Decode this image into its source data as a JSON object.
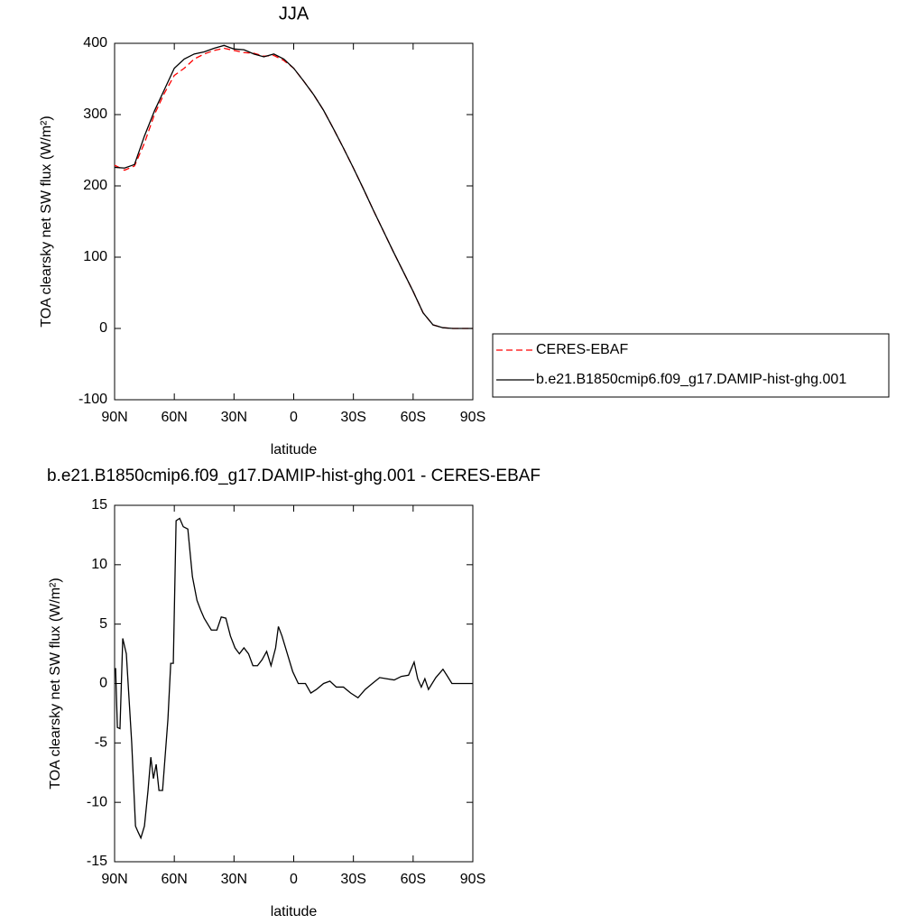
{
  "chart_data": [
    {
      "type": "line",
      "title": "JJA",
      "x_label": "latitude",
      "y_label": "TOA clearsky net SW flux (W/m²)",
      "x": [
        90,
        85,
        80,
        75,
        70,
        65,
        60,
        55,
        50,
        45,
        40,
        35,
        30,
        25,
        20,
        15,
        10,
        5,
        0,
        -5,
        -10,
        -15,
        -20,
        -25,
        -30,
        -35,
        -40,
        -45,
        -50,
        -55,
        -60,
        -65,
        -70,
        -75,
        -80,
        -85,
        -90
      ],
      "series": [
        {
          "name": "CERES-EBAF",
          "color": "#ff0000",
          "style": "dashed",
          "values": [
            229,
            222,
            228,
            260,
            300,
            330,
            355,
            365,
            378,
            385,
            390,
            393,
            390,
            387,
            386,
            382,
            383,
            376,
            365,
            347,
            328,
            306,
            280,
            253,
            225,
            196,
            166,
            137,
            108,
            80,
            52,
            22,
            5,
            1,
            0,
            0,
            0
          ]
        },
        {
          "name": "b.e21.B1850cmip6.f09_g17.DAMIP-hist-ghg.001",
          "color": "#000000",
          "style": "solid",
          "values": [
            226,
            225,
            230,
            270,
            305,
            335,
            365,
            378,
            385,
            388,
            393,
            397,
            392,
            391,
            385,
            381,
            385,
            378,
            365,
            347,
            328,
            306,
            280,
            253,
            225,
            196,
            166,
            137,
            108,
            80,
            52,
            22,
            5,
            1,
            0,
            0,
            0
          ]
        }
      ],
      "xlim": [
        90,
        -90
      ],
      "xticks": [
        {
          "value": 90,
          "label": "90N"
        },
        {
          "value": 60,
          "label": "60N"
        },
        {
          "value": 30,
          "label": "30N"
        },
        0,
        {
          "value": -30,
          "label": "30S"
        },
        {
          "value": -60,
          "label": "60S"
        },
        {
          "value": -90,
          "label": "90S"
        }
      ],
      "ylim": [
        -100,
        400
      ],
      "yticks": [
        -100,
        0,
        100,
        200,
        300,
        400
      ],
      "legend": "right"
    },
    {
      "type": "line",
      "title": "b.e21.B1850cmip6.f09_g17.DAMIP-hist-ghg.001 - CERES-EBAF",
      "x_label": "latitude",
      "y_label": "TOA clearsky net SW flux (W/m²)",
      "x": [
        89.5,
        88.6,
        87.3,
        85.9,
        84.1,
        81.4,
        79.5,
        78.2,
        76.8,
        75,
        73.2,
        71.8,
        70.5,
        69.1,
        67.7,
        65.9,
        63.2,
        61.8,
        60.5,
        59.1,
        57.3,
        55.5,
        53.2,
        50.9,
        48.6,
        46.8,
        45,
        43.2,
        41.4,
        38.6,
        36.4,
        34.1,
        31.8,
        29.5,
        27.3,
        25,
        22.7,
        20.5,
        18.2,
        15.9,
        13.6,
        11.4,
        9.1,
        7.7,
        5.9,
        3.2,
        0.5,
        -2.3,
        -5.9,
        -8.6,
        -11.4,
        -15,
        -18.2,
        -21.4,
        -25,
        -28.6,
        -32.3,
        -35.9,
        -39.5,
        -43.2,
        -46.8,
        -50.5,
        -54.1,
        -57.7,
        -60.5,
        -62.3,
        -64.1,
        -65.9,
        -67.7,
        -71.4,
        -75,
        -77.3,
        -79.5,
        -90
      ],
      "series": [
        {
          "color": "#000000",
          "style": "solid",
          "values": [
            1.3,
            -3.7,
            -3.8,
            3.8,
            2.5,
            -5,
            -12,
            -12.5,
            -13,
            -12,
            -9,
            -6.2,
            -8,
            -6.8,
            -9,
            -9,
            -3,
            1.7,
            1.7,
            13.7,
            13.9,
            13.2,
            13,
            9,
            7,
            6.2,
            5.5,
            5,
            4.5,
            4.5,
            5.6,
            5.5,
            4,
            3,
            2.5,
            3,
            2.5,
            1.5,
            1.5,
            2,
            2.7,
            1.5,
            3,
            4.8,
            4,
            2.5,
            1,
            0,
            0,
            -0.8,
            -0.5,
            0,
            0.2,
            -0.3,
            -0.3,
            -0.8,
            -1.2,
            -0.5,
            0,
            0.5,
            0.4,
            0.3,
            0.6,
            0.7,
            1.8,
            0.4,
            -0.3,
            0.4,
            -0.5,
            0.5,
            1.2,
            0.6,
            0,
            0
          ]
        }
      ],
      "xlim": [
        90,
        -90
      ],
      "xticks": [
        {
          "value": 90,
          "label": "90N"
        },
        {
          "value": 60,
          "label": "60N"
        },
        {
          "value": 30,
          "label": "30N"
        },
        0,
        {
          "value": -30,
          "label": "30S"
        },
        {
          "value": -60,
          "label": "60S"
        },
        {
          "value": -90,
          "label": "90S"
        }
      ],
      "ylim": [
        -15,
        15
      ],
      "yticks": [
        -15,
        -10,
        -5,
        0,
        5,
        10,
        15
      ]
    }
  ]
}
